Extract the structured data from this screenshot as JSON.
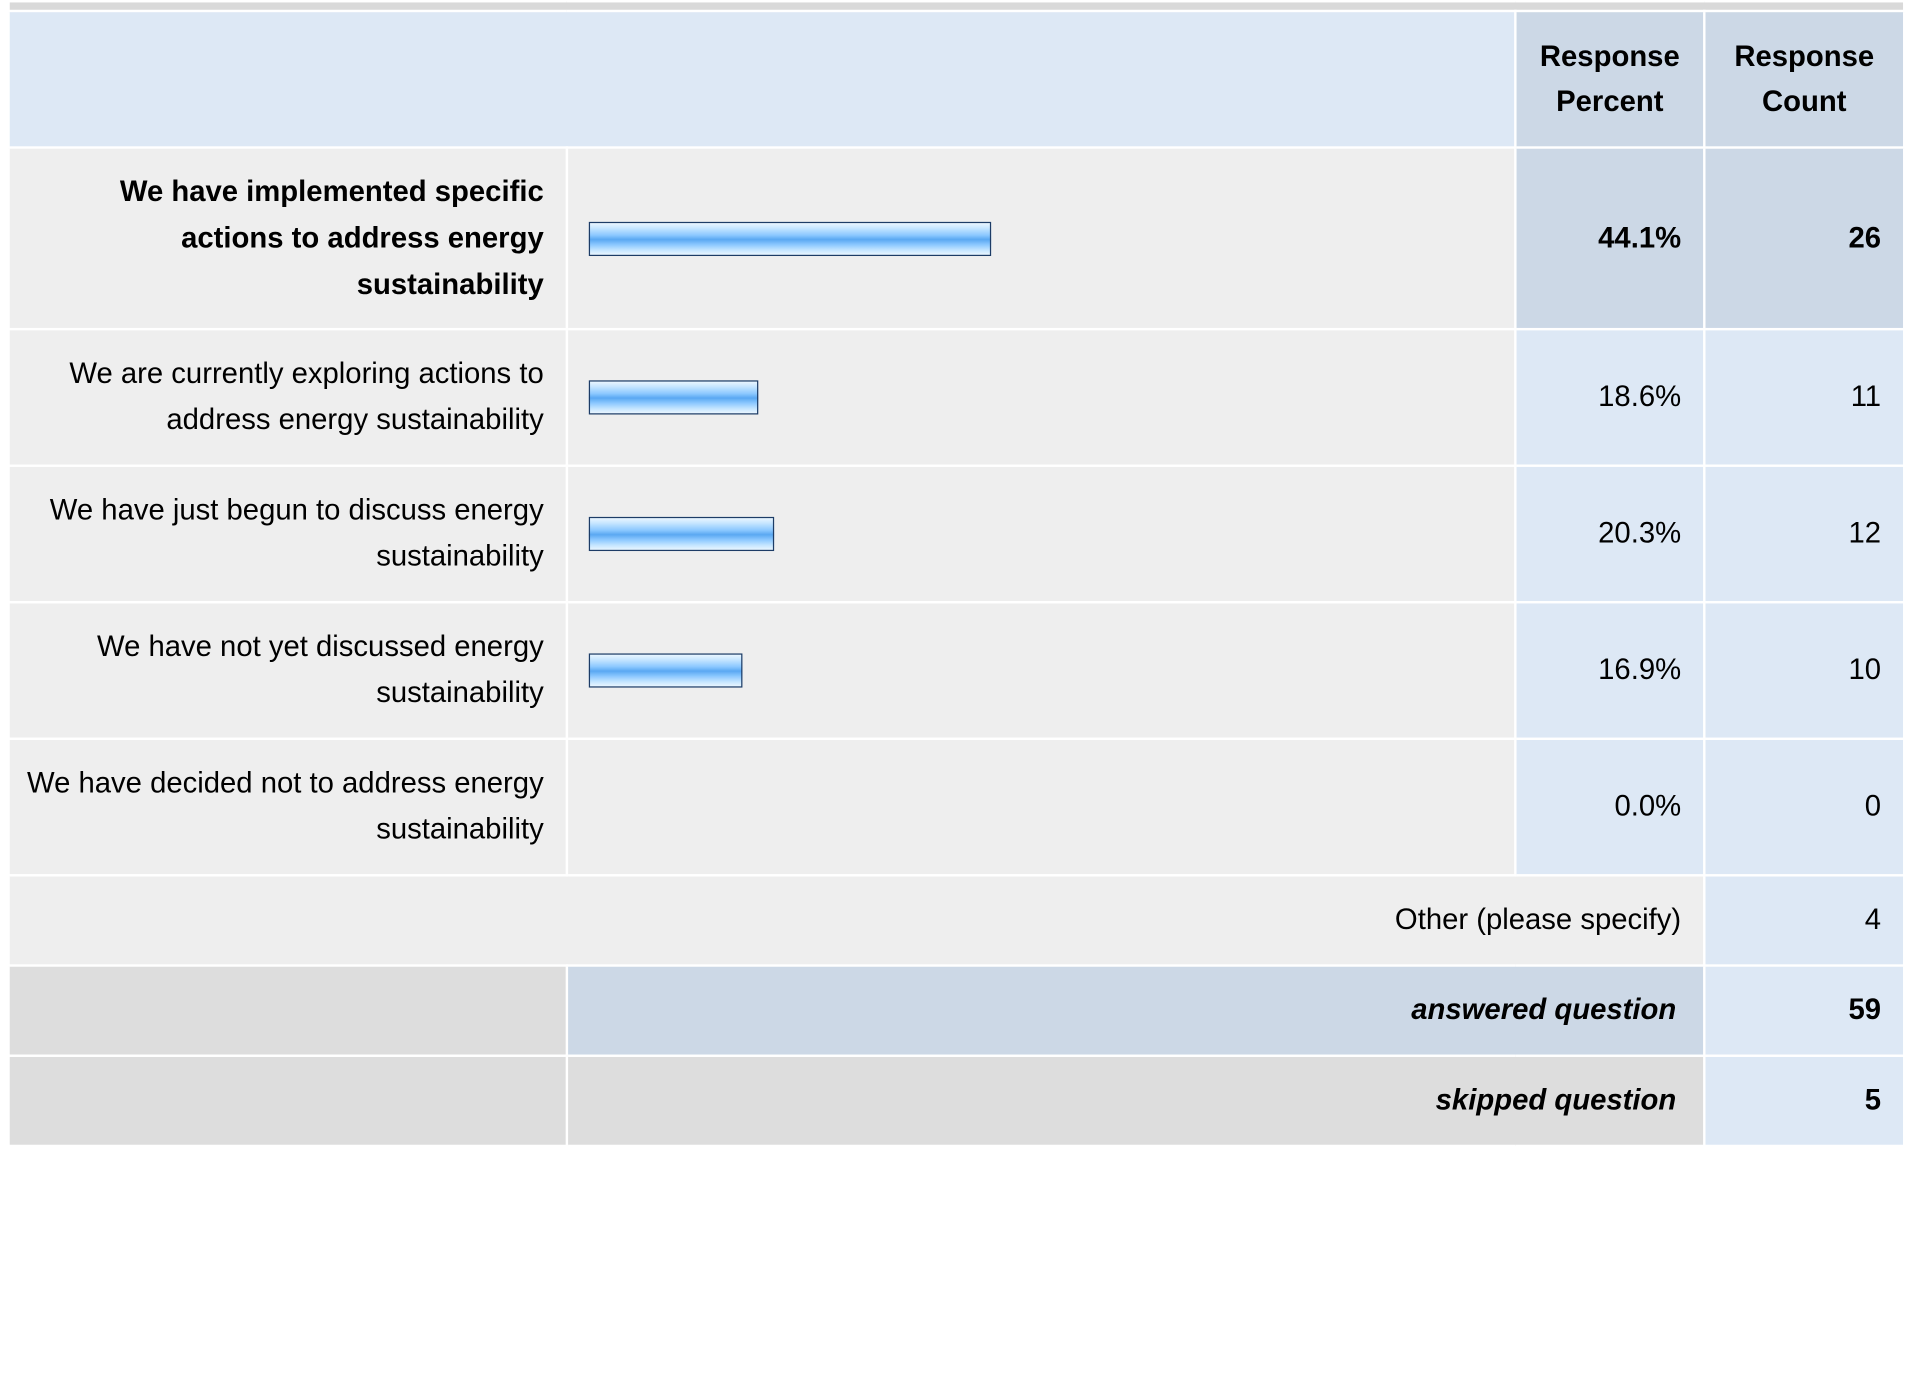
{
  "header": {
    "response_percent": "Response Percent",
    "response_count": "Response Count"
  },
  "chart_data": {
    "type": "bar",
    "orientation": "horizontal",
    "categories": [
      "We have implemented specific actions to address energy sustainability",
      "We are currently exploring actions to address energy sustainability",
      "We have just begun to discuss energy sustainability",
      "We have not yet discussed energy sustainability",
      "We have decided not to address energy sustainability"
    ],
    "values": [
      44.1,
      18.6,
      20.3,
      16.9,
      0.0
    ],
    "counts": [
      26,
      11,
      12,
      10,
      0
    ],
    "bar_color": "#5aa8f2",
    "bar_border_color": "#1d3c66"
  },
  "rows": [
    {
      "label": "We have implemented specific actions to address energy sustainability",
      "percent": "44.1%",
      "count": "26"
    },
    {
      "label": "We are currently exploring actions to address energy sustainability",
      "percent": "18.6%",
      "count": "11"
    },
    {
      "label": "We have just begun to discuss energy sustainability",
      "percent": "20.3%",
      "count": "12"
    },
    {
      "label": "We have not yet discussed energy sustainability",
      "percent": "16.9%",
      "count": "10"
    },
    {
      "label": "We have decided not to address energy sustainability",
      "percent": "0.0%",
      "count": "0"
    }
  ],
  "other": {
    "label": "Other (please specify)",
    "count": "4"
  },
  "summary": {
    "answered_label": "answered question",
    "answered_count": "59",
    "skipped_label": "skipped question",
    "skipped_count": "5"
  }
}
